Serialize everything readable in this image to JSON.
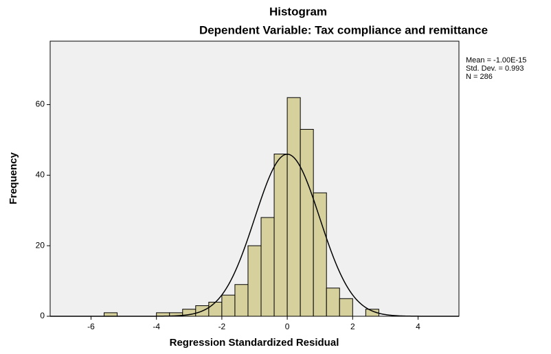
{
  "chart_data": {
    "type": "histogram",
    "title": "Histogram",
    "subtitle": "Dependent Variable: Tax compliance and remittance",
    "x_label": "Regression Standardized Residual",
    "y_label": "Frequency",
    "bins": [
      -5.6,
      -5.2,
      -4.8,
      -4.4,
      -4.0,
      -3.6,
      -3.2,
      -2.8,
      -2.4,
      -2.0,
      -1.6,
      -1.2,
      -0.8,
      -0.4,
      0,
      0.4,
      0.8,
      1.2,
      1.6,
      2.0,
      2.4,
      2.8
    ],
    "values": [
      1,
      0,
      0,
      0,
      1,
      1,
      2,
      3,
      4,
      6,
      9,
      20,
      28,
      46,
      62,
      53,
      35,
      8,
      5,
      0,
      2
    ],
    "color": "#d6d09c",
    "xlim": [
      -7.25,
      5.25
    ],
    "ylim": [
      0,
      78
    ],
    "xticks": [
      -6,
      -4,
      -2,
      0,
      2,
      4
    ],
    "yticks": [
      0,
      20,
      40,
      60
    ],
    "grid": false,
    "stats": {
      "mean": {
        "value": -1e-15,
        "label": "Mean = -1.00E-15"
      },
      "sd": {
        "value": 0.993,
        "label": "Std. Dev. = 0.993"
      },
      "n": {
        "value": 286,
        "label": "N = 286"
      }
    }
  }
}
